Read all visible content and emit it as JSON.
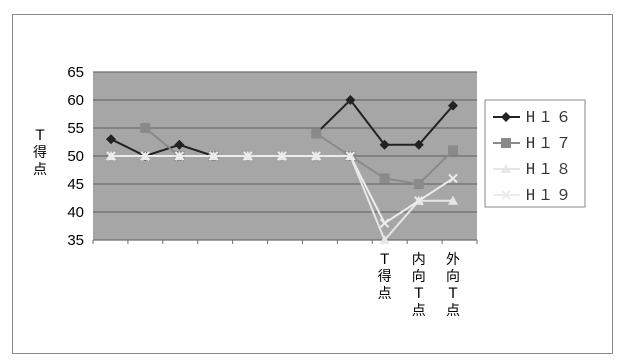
{
  "chart_data": {
    "type": "line",
    "ylabel": "T\n得\n点",
    "ylim": [
      35,
      65
    ],
    "yticks": [
      35,
      40,
      45,
      50,
      55,
      60,
      65
    ],
    "grid": true,
    "legend_position": "right",
    "categories": [
      "",
      "",
      "",
      "",
      "",
      "",
      "",
      "",
      "T\n得\n点",
      "内\n向\nT\n点",
      "外\n向\nT\n点"
    ],
    "series": [
      {
        "name": "H16",
        "legend_label": "H１６",
        "color": "#222222",
        "marker": "diamond",
        "values": [
          53,
          50,
          52,
          50,
          null,
          null,
          54,
          60,
          52,
          52,
          59
        ]
      },
      {
        "name": "H17",
        "legend_label": "H１７",
        "color": "#8a8a8a",
        "marker": "square",
        "values": [
          null,
          55,
          50,
          50,
          null,
          null,
          54,
          50,
          46,
          45,
          51
        ]
      },
      {
        "name": "H18",
        "legend_label": "H１８",
        "color": "#e6e6e6",
        "marker": "triangle",
        "values": [
          50,
          50,
          50,
          50,
          50,
          50,
          50,
          50,
          35,
          42,
          42
        ]
      },
      {
        "name": "H19",
        "legend_label": "H１９",
        "color": "#ececec",
        "marker": "x",
        "values": [
          50,
          50,
          50,
          50,
          50,
          50,
          50,
          50,
          38,
          42,
          46
        ]
      }
    ]
  }
}
